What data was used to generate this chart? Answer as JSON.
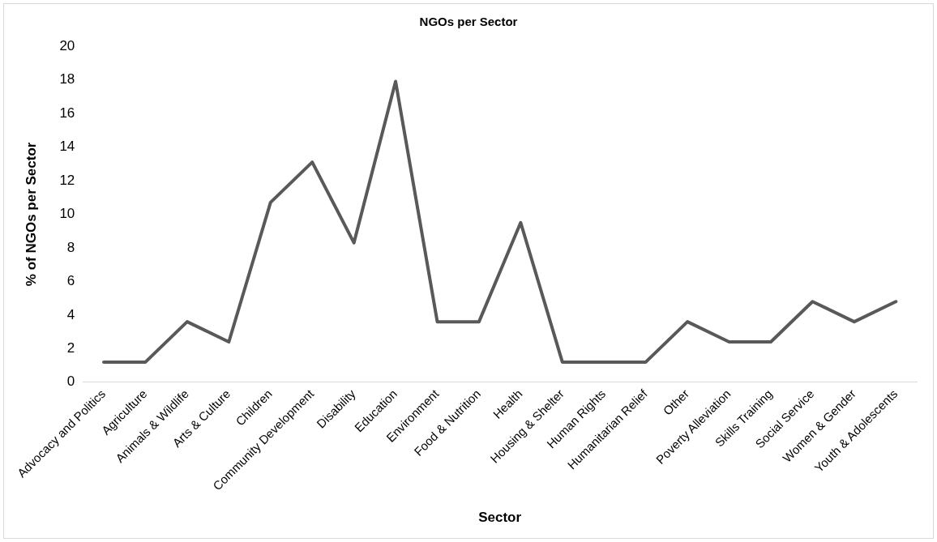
{
  "chart_data": {
    "type": "line",
    "title": "NGOs per Sector",
    "xlabel": "Sector",
    "ylabel": "% of NGOs per Sector",
    "categories": [
      "Advocacy and Politics",
      "Agriculture",
      "Animals & Wildlife",
      "Arts & Culture",
      "Children",
      "Community Development",
      "Disability",
      "Education",
      "Environment",
      "Food & Nutrition",
      "Health",
      "Housing & Shelter",
      "Human Rights",
      "Humanitarian Relief",
      "Other",
      "Poverty Alleviation",
      "Skills Training",
      "Social Service",
      "Women & Gender",
      "Youth & Adolescents"
    ],
    "series": [
      {
        "color": "#595959",
        "values": [
          1.2,
          1.2,
          3.6,
          2.4,
          10.7,
          13.1,
          8.3,
          17.9,
          3.6,
          3.6,
          9.5,
          1.2,
          1.2,
          1.2,
          3.6,
          2.4,
          2.4,
          4.8,
          3.6,
          4.8
        ]
      }
    ],
    "ylim": [
      0,
      20
    ],
    "yticks": [
      0,
      2,
      4,
      6,
      8,
      10,
      12,
      14,
      16,
      18,
      20
    ],
    "grid": false,
    "legend": false,
    "marker": "none",
    "line_style": "solid"
  }
}
